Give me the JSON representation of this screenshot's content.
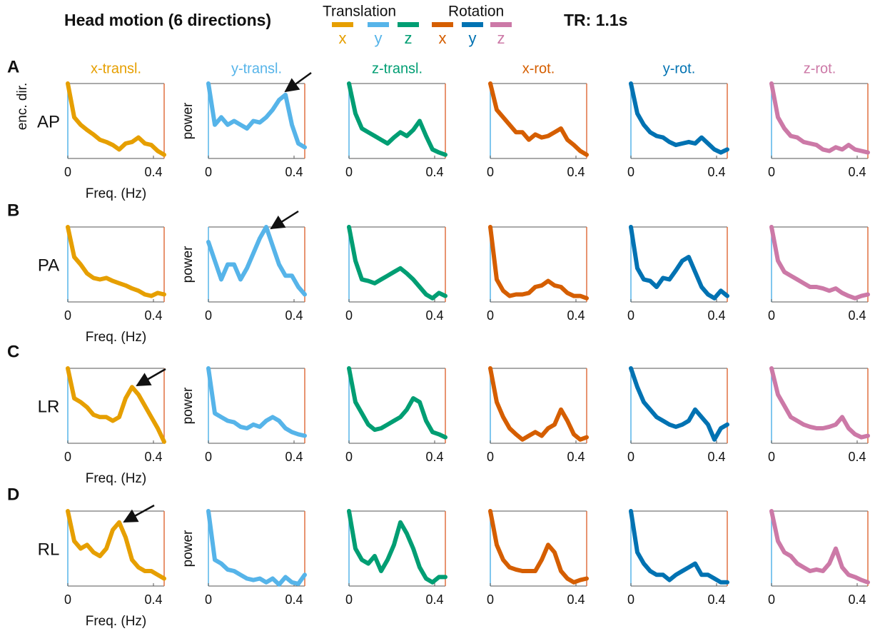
{
  "header": {
    "title": "Head motion (6 directions)",
    "tr": "TR: 1.1s",
    "legend": [
      {
        "title": "Translation",
        "items": [
          {
            "label": "x",
            "color": "#e69f00"
          },
          {
            "label": "y",
            "color": "#56b4e9"
          },
          {
            "label": "z",
            "color": "#009e73"
          }
        ]
      },
      {
        "title": "Rotation",
        "items": [
          {
            "label": "x",
            "color": "#d55e00"
          },
          {
            "label": "y",
            "color": "#0072b2"
          },
          {
            "label": "z",
            "color": "#cc79a7"
          }
        ]
      }
    ]
  },
  "rows": [
    {
      "letter": "A",
      "label": "AP"
    },
    {
      "letter": "B",
      "label": "PA"
    },
    {
      "letter": "C",
      "label": "LR"
    },
    {
      "letter": "D",
      "label": "RL"
    }
  ],
  "chart_data": [
    {
      "type": "line",
      "title": "x-transl.",
      "ylabel": "enc. dir.",
      "xlabel": "Freq. (Hz)",
      "color": "#e69f00",
      "xlim": [
        0,
        0.45
      ],
      "ylim": [
        0,
        1
      ],
      "xticks": [
        0,
        0.4
      ],
      "x": [
        0,
        0.03,
        0.06,
        0.09,
        0.12,
        0.15,
        0.18,
        0.21,
        0.24,
        0.27,
        0.3,
        0.33,
        0.36,
        0.39,
        0.42,
        0.45
      ],
      "values": [
        1.0,
        0.55,
        0.45,
        0.38,
        0.32,
        0.25,
        0.22,
        0.18,
        0.12,
        0.2,
        0.22,
        0.28,
        0.2,
        0.18,
        0.1,
        0.05
      ]
    },
    {
      "type": "line",
      "title": "y-transl.",
      "ylabel": "power",
      "color": "#56b4e9",
      "xlim": [
        0,
        0.45
      ],
      "ylim": [
        0,
        1
      ],
      "xticks": [
        0,
        0.4
      ],
      "x": [
        0,
        0.03,
        0.06,
        0.09,
        0.12,
        0.15,
        0.18,
        0.21,
        0.24,
        0.27,
        0.3,
        0.33,
        0.36,
        0.39,
        0.42,
        0.45
      ],
      "values": [
        1.0,
        0.45,
        0.55,
        0.45,
        0.5,
        0.45,
        0.4,
        0.5,
        0.48,
        0.55,
        0.65,
        0.78,
        0.85,
        0.45,
        0.2,
        0.15
      ]
    },
    {
      "type": "line",
      "title": "z-transl.",
      "color": "#009e73",
      "xlim": [
        0,
        0.45
      ],
      "ylim": [
        0,
        1
      ],
      "xticks": [
        0,
        0.4
      ],
      "x": [
        0,
        0.03,
        0.06,
        0.09,
        0.12,
        0.15,
        0.18,
        0.21,
        0.24,
        0.27,
        0.3,
        0.33,
        0.36,
        0.39,
        0.42,
        0.45
      ],
      "values": [
        1.0,
        0.6,
        0.4,
        0.35,
        0.3,
        0.25,
        0.2,
        0.28,
        0.35,
        0.3,
        0.38,
        0.5,
        0.3,
        0.12,
        0.08,
        0.05
      ]
    },
    {
      "type": "line",
      "title": "x-rot.",
      "color": "#d55e00",
      "xlim": [
        0,
        0.45
      ],
      "ylim": [
        0,
        1
      ],
      "xticks": [
        0,
        0.4
      ],
      "x": [
        0,
        0.03,
        0.06,
        0.09,
        0.12,
        0.15,
        0.18,
        0.21,
        0.24,
        0.27,
        0.3,
        0.33,
        0.36,
        0.39,
        0.42,
        0.45
      ],
      "values": [
        1.0,
        0.65,
        0.55,
        0.45,
        0.35,
        0.35,
        0.25,
        0.32,
        0.28,
        0.3,
        0.35,
        0.4,
        0.25,
        0.18,
        0.1,
        0.05
      ]
    },
    {
      "type": "line",
      "title": "y-rot.",
      "color": "#0072b2",
      "xlim": [
        0,
        0.45
      ],
      "ylim": [
        0,
        1
      ],
      "xticks": [
        0,
        0.4
      ],
      "x": [
        0,
        0.03,
        0.06,
        0.09,
        0.12,
        0.15,
        0.18,
        0.21,
        0.24,
        0.27,
        0.3,
        0.33,
        0.36,
        0.39,
        0.42,
        0.45
      ],
      "values": [
        1.0,
        0.6,
        0.45,
        0.35,
        0.3,
        0.28,
        0.22,
        0.18,
        0.2,
        0.22,
        0.2,
        0.28,
        0.2,
        0.12,
        0.08,
        0.12
      ]
    },
    {
      "type": "line",
      "title": "z-rot.",
      "color": "#cc79a7",
      "xlim": [
        0,
        0.45
      ],
      "ylim": [
        0,
        1
      ],
      "xticks": [
        0,
        0.4
      ],
      "x": [
        0,
        0.03,
        0.06,
        0.09,
        0.12,
        0.15,
        0.18,
        0.21,
        0.24,
        0.27,
        0.3,
        0.33,
        0.36,
        0.39,
        0.42,
        0.45
      ],
      "values": [
        1.0,
        0.55,
        0.4,
        0.3,
        0.28,
        0.22,
        0.2,
        0.18,
        0.12,
        0.1,
        0.15,
        0.12,
        0.18,
        0.12,
        0.1,
        0.08
      ]
    },
    {
      "type": "line",
      "xlabel": "Freq. (Hz)",
      "color": "#e69f00",
      "xlim": [
        0,
        0.45
      ],
      "ylim": [
        0,
        1
      ],
      "xticks": [
        0,
        0.4
      ],
      "x": [
        0,
        0.03,
        0.06,
        0.09,
        0.12,
        0.15,
        0.18,
        0.21,
        0.24,
        0.27,
        0.3,
        0.33,
        0.36,
        0.39,
        0.42,
        0.45
      ],
      "values": [
        1.0,
        0.6,
        0.5,
        0.38,
        0.32,
        0.3,
        0.32,
        0.28,
        0.25,
        0.22,
        0.18,
        0.15,
        0.1,
        0.08,
        0.12,
        0.1
      ]
    },
    {
      "type": "line",
      "ylabel": "power",
      "color": "#56b4e9",
      "xlim": [
        0,
        0.45
      ],
      "ylim": [
        0,
        1
      ],
      "xticks": [
        0,
        0.4
      ],
      "x": [
        0,
        0.03,
        0.06,
        0.09,
        0.12,
        0.15,
        0.18,
        0.21,
        0.24,
        0.27,
        0.3,
        0.33,
        0.36,
        0.39,
        0.42,
        0.45
      ],
      "values": [
        0.8,
        0.55,
        0.3,
        0.5,
        0.5,
        0.3,
        0.45,
        0.65,
        0.85,
        1.0,
        0.75,
        0.5,
        0.35,
        0.35,
        0.2,
        0.1
      ]
    },
    {
      "type": "line",
      "color": "#009e73",
      "xlim": [
        0,
        0.45
      ],
      "ylim": [
        0,
        1
      ],
      "xticks": [
        0,
        0.4
      ],
      "x": [
        0,
        0.03,
        0.06,
        0.09,
        0.12,
        0.15,
        0.18,
        0.21,
        0.24,
        0.27,
        0.3,
        0.33,
        0.36,
        0.39,
        0.42,
        0.45
      ],
      "values": [
        1.0,
        0.55,
        0.3,
        0.28,
        0.25,
        0.3,
        0.35,
        0.4,
        0.45,
        0.38,
        0.3,
        0.2,
        0.1,
        0.05,
        0.12,
        0.08
      ]
    },
    {
      "type": "line",
      "color": "#d55e00",
      "xlim": [
        0,
        0.45
      ],
      "ylim": [
        0,
        1
      ],
      "xticks": [
        0,
        0.4
      ],
      "x": [
        0,
        0.03,
        0.06,
        0.09,
        0.12,
        0.15,
        0.18,
        0.21,
        0.24,
        0.27,
        0.3,
        0.33,
        0.36,
        0.39,
        0.42,
        0.45
      ],
      "values": [
        1.0,
        0.3,
        0.15,
        0.08,
        0.1,
        0.1,
        0.12,
        0.2,
        0.22,
        0.28,
        0.22,
        0.2,
        0.12,
        0.08,
        0.08,
        0.05
      ]
    },
    {
      "type": "line",
      "color": "#0072b2",
      "xlim": [
        0,
        0.45
      ],
      "ylim": [
        0,
        1
      ],
      "xticks": [
        0,
        0.4
      ],
      "x": [
        0,
        0.03,
        0.06,
        0.09,
        0.12,
        0.15,
        0.18,
        0.21,
        0.24,
        0.27,
        0.3,
        0.33,
        0.36,
        0.39,
        0.42,
        0.45
      ],
      "values": [
        1.0,
        0.45,
        0.3,
        0.28,
        0.2,
        0.32,
        0.3,
        0.42,
        0.55,
        0.6,
        0.4,
        0.2,
        0.1,
        0.05,
        0.15,
        0.08
      ]
    },
    {
      "type": "line",
      "color": "#cc79a7",
      "xlim": [
        0,
        0.45
      ],
      "ylim": [
        0,
        1
      ],
      "xticks": [
        0,
        0.4
      ],
      "x": [
        0,
        0.03,
        0.06,
        0.09,
        0.12,
        0.15,
        0.18,
        0.21,
        0.24,
        0.27,
        0.3,
        0.33,
        0.36,
        0.39,
        0.42,
        0.45
      ],
      "values": [
        1.0,
        0.55,
        0.4,
        0.35,
        0.3,
        0.25,
        0.2,
        0.2,
        0.18,
        0.15,
        0.18,
        0.12,
        0.08,
        0.05,
        0.08,
        0.1
      ]
    },
    {
      "type": "line",
      "xlabel": "Freq. (Hz)",
      "color": "#e69f00",
      "xlim": [
        0,
        0.45
      ],
      "ylim": [
        0,
        1
      ],
      "xticks": [
        0,
        0.4
      ],
      "x": [
        0,
        0.03,
        0.06,
        0.09,
        0.12,
        0.15,
        0.18,
        0.21,
        0.24,
        0.27,
        0.3,
        0.33,
        0.36,
        0.39,
        0.42,
        0.45
      ],
      "values": [
        1.0,
        0.6,
        0.55,
        0.48,
        0.38,
        0.35,
        0.35,
        0.3,
        0.35,
        0.6,
        0.75,
        0.65,
        0.5,
        0.35,
        0.2,
        0.02
      ]
    },
    {
      "type": "line",
      "ylabel": "power",
      "color": "#56b4e9",
      "xlim": [
        0,
        0.45
      ],
      "ylim": [
        0,
        1
      ],
      "xticks": [
        0,
        0.4
      ],
      "x": [
        0,
        0.03,
        0.06,
        0.09,
        0.12,
        0.15,
        0.18,
        0.21,
        0.24,
        0.27,
        0.3,
        0.33,
        0.36,
        0.39,
        0.42,
        0.45
      ],
      "values": [
        1.0,
        0.4,
        0.35,
        0.3,
        0.28,
        0.22,
        0.2,
        0.25,
        0.22,
        0.3,
        0.35,
        0.3,
        0.2,
        0.15,
        0.12,
        0.1
      ]
    },
    {
      "type": "line",
      "color": "#009e73",
      "xlim": [
        0,
        0.45
      ],
      "ylim": [
        0,
        1
      ],
      "xticks": [
        0,
        0.4
      ],
      "x": [
        0,
        0.03,
        0.06,
        0.09,
        0.12,
        0.15,
        0.18,
        0.21,
        0.24,
        0.27,
        0.3,
        0.33,
        0.36,
        0.39,
        0.42,
        0.45
      ],
      "values": [
        1.0,
        0.55,
        0.4,
        0.25,
        0.18,
        0.2,
        0.25,
        0.3,
        0.35,
        0.45,
        0.6,
        0.55,
        0.3,
        0.15,
        0.12,
        0.08
      ]
    },
    {
      "type": "line",
      "color": "#d55e00",
      "xlim": [
        0,
        0.45
      ],
      "ylim": [
        0,
        1
      ],
      "xticks": [
        0,
        0.4
      ],
      "x": [
        0,
        0.03,
        0.06,
        0.09,
        0.12,
        0.15,
        0.18,
        0.21,
        0.24,
        0.27,
        0.3,
        0.33,
        0.36,
        0.39,
        0.42,
        0.45
      ],
      "values": [
        1.0,
        0.55,
        0.35,
        0.2,
        0.12,
        0.05,
        0.1,
        0.15,
        0.1,
        0.2,
        0.25,
        0.45,
        0.3,
        0.12,
        0.05,
        0.08
      ]
    },
    {
      "type": "line",
      "color": "#0072b2",
      "xlim": [
        0,
        0.45
      ],
      "ylim": [
        0,
        1
      ],
      "xticks": [
        0,
        0.4
      ],
      "x": [
        0,
        0.03,
        0.06,
        0.09,
        0.12,
        0.15,
        0.18,
        0.21,
        0.24,
        0.27,
        0.3,
        0.33,
        0.36,
        0.39,
        0.42,
        0.45
      ],
      "values": [
        1.0,
        0.75,
        0.55,
        0.45,
        0.35,
        0.3,
        0.25,
        0.22,
        0.25,
        0.3,
        0.45,
        0.35,
        0.25,
        0.05,
        0.2,
        0.25
      ]
    },
    {
      "type": "line",
      "color": "#cc79a7",
      "xlim": [
        0,
        0.45
      ],
      "ylim": [
        0,
        1
      ],
      "xticks": [
        0,
        0.4
      ],
      "x": [
        0,
        0.03,
        0.06,
        0.09,
        0.12,
        0.15,
        0.18,
        0.21,
        0.24,
        0.27,
        0.3,
        0.33,
        0.36,
        0.39,
        0.42,
        0.45
      ],
      "values": [
        1.0,
        0.65,
        0.5,
        0.35,
        0.3,
        0.25,
        0.22,
        0.2,
        0.2,
        0.22,
        0.25,
        0.35,
        0.2,
        0.12,
        0.08,
        0.1
      ]
    },
    {
      "type": "line",
      "xlabel": "Freq. (Hz)",
      "color": "#e69f00",
      "xlim": [
        0,
        0.45
      ],
      "ylim": [
        0,
        1
      ],
      "xticks": [
        0,
        0.4
      ],
      "x": [
        0,
        0.03,
        0.06,
        0.09,
        0.12,
        0.15,
        0.18,
        0.21,
        0.24,
        0.27,
        0.3,
        0.33,
        0.36,
        0.39,
        0.42,
        0.45
      ],
      "values": [
        1.0,
        0.6,
        0.5,
        0.55,
        0.45,
        0.4,
        0.5,
        0.75,
        0.85,
        0.65,
        0.35,
        0.25,
        0.2,
        0.2,
        0.15,
        0.1
      ]
    },
    {
      "type": "line",
      "ylabel": "power",
      "color": "#56b4e9",
      "xlim": [
        0,
        0.45
      ],
      "ylim": [
        0,
        1
      ],
      "xticks": [
        0,
        0.4
      ],
      "x": [
        0,
        0.03,
        0.06,
        0.09,
        0.12,
        0.15,
        0.18,
        0.21,
        0.24,
        0.27,
        0.3,
        0.33,
        0.36,
        0.39,
        0.42,
        0.45
      ],
      "values": [
        1.0,
        0.35,
        0.3,
        0.22,
        0.2,
        0.15,
        0.1,
        0.08,
        0.1,
        0.05,
        0.1,
        0.02,
        0.12,
        0.05,
        0.03,
        0.15
      ]
    },
    {
      "type": "line",
      "color": "#009e73",
      "xlim": [
        0,
        0.45
      ],
      "ylim": [
        0,
        1
      ],
      "xticks": [
        0,
        0.4
      ],
      "x": [
        0,
        0.03,
        0.06,
        0.09,
        0.12,
        0.15,
        0.18,
        0.21,
        0.24,
        0.27,
        0.3,
        0.33,
        0.36,
        0.39,
        0.42,
        0.45
      ],
      "values": [
        1.0,
        0.5,
        0.35,
        0.3,
        0.4,
        0.2,
        0.35,
        0.55,
        0.85,
        0.7,
        0.5,
        0.25,
        0.1,
        0.05,
        0.12,
        0.12
      ]
    },
    {
      "type": "line",
      "color": "#d55e00",
      "xlim": [
        0,
        0.45
      ],
      "ylim": [
        0,
        1
      ],
      "xticks": [
        0,
        0.4
      ],
      "x": [
        0,
        0.03,
        0.06,
        0.09,
        0.12,
        0.15,
        0.18,
        0.21,
        0.24,
        0.27,
        0.3,
        0.33,
        0.36,
        0.39,
        0.42,
        0.45
      ],
      "values": [
        1.0,
        0.55,
        0.35,
        0.25,
        0.22,
        0.2,
        0.2,
        0.2,
        0.35,
        0.55,
        0.45,
        0.2,
        0.1,
        0.05,
        0.08,
        0.1
      ]
    },
    {
      "type": "line",
      "color": "#0072b2",
      "xlim": [
        0,
        0.45
      ],
      "ylim": [
        0,
        1
      ],
      "xticks": [
        0,
        0.4
      ],
      "x": [
        0,
        0.03,
        0.06,
        0.09,
        0.12,
        0.15,
        0.18,
        0.21,
        0.24,
        0.27,
        0.3,
        0.33,
        0.36,
        0.39,
        0.42,
        0.45
      ],
      "values": [
        1.0,
        0.45,
        0.3,
        0.2,
        0.15,
        0.15,
        0.08,
        0.15,
        0.2,
        0.25,
        0.3,
        0.15,
        0.15,
        0.1,
        0.05,
        0.05
      ]
    },
    {
      "type": "line",
      "color": "#cc79a7",
      "xlim": [
        0,
        0.45
      ],
      "ylim": [
        0,
        1
      ],
      "xticks": [
        0,
        0.4
      ],
      "x": [
        0,
        0.03,
        0.06,
        0.09,
        0.12,
        0.15,
        0.18,
        0.21,
        0.24,
        0.27,
        0.3,
        0.33,
        0.36,
        0.39,
        0.42,
        0.45
      ],
      "values": [
        1.0,
        0.6,
        0.45,
        0.4,
        0.3,
        0.25,
        0.2,
        0.22,
        0.2,
        0.3,
        0.5,
        0.25,
        0.15,
        0.12,
        0.08,
        0.05
      ]
    }
  ]
}
